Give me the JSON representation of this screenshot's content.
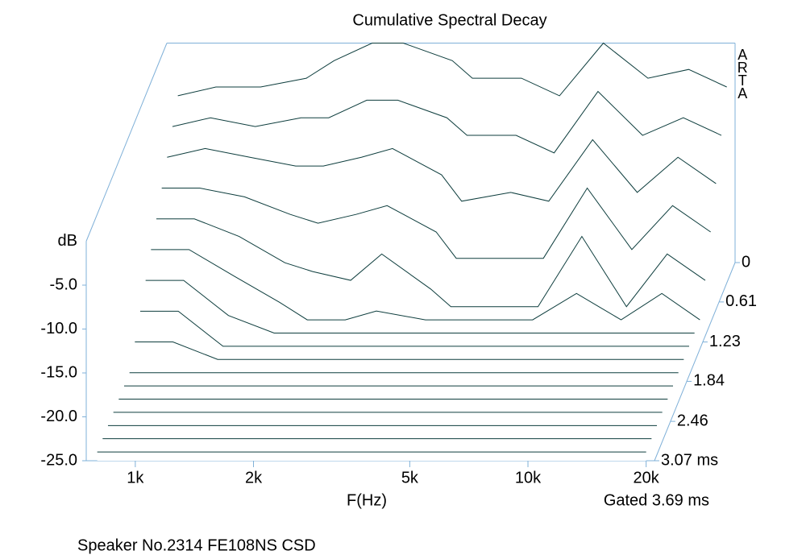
{
  "chart_data": {
    "type": "waterfall",
    "title": "Cumulative Spectral Decay",
    "x_label": "F(Hz)",
    "y_label": "dB",
    "note": "Gated 3.69 ms",
    "watermark": "ARTA",
    "caption": "Speaker No.2314 FE108NS CSD",
    "log_x": true,
    "color": "#0d3d3d",
    "frame_color": "#7fb0d8",
    "x": [
      800,
      1000,
      1300,
      1700,
      2000,
      2500,
      3000,
      4000,
      4500,
      6000,
      7500,
      9700,
      12600,
      16000,
      20000
    ],
    "z": [
      0,
      0.205,
      0.409,
      0.614,
      0.819,
      1.023,
      1.228,
      1.433,
      1.637,
      1.842,
      2.047,
      2.251,
      2.456,
      2.661,
      2.865,
      3.07
    ],
    "values": [
      [
        -6,
        -5,
        -5,
        -4,
        -2,
        0,
        0,
        -2,
        -4,
        -4,
        -6,
        0,
        -4,
        -3,
        -5
      ],
      [
        -8,
        -7,
        -8,
        -7,
        -7,
        -5,
        -5,
        -7,
        -9,
        -9,
        -11,
        -4,
        -9,
        -7,
        -9
      ],
      [
        -10,
        -9,
        -10,
        -11,
        -11,
        -10,
        -9,
        -12,
        -15,
        -14,
        -15,
        -8,
        -14,
        -10,
        -13
      ],
      [
        -12,
        -12,
        -13,
        -15,
        -16,
        -15,
        -14,
        -17,
        -20,
        -20,
        -20,
        -12,
        -19,
        -14,
        -17
      ],
      [
        -14,
        -14,
        -16,
        -19,
        -20,
        -21,
        -18,
        -22,
        -24,
        -24,
        -24,
        -16,
        -24,
        -18,
        -21
      ],
      [
        -16,
        -16,
        -19,
        -22,
        -24,
        -24,
        -23,
        -24,
        -24,
        -24,
        -24,
        -21,
        -24,
        -21,
        -24
      ],
      [
        -18,
        -18,
        -22,
        -24,
        -24,
        -24,
        -24,
        -24,
        -24,
        -24,
        -24,
        -24,
        -24,
        -24,
        -24
      ],
      [
        -20,
        -20,
        -24,
        -24,
        -24,
        -24,
        -24,
        -24,
        -24,
        -24,
        -24,
        -24,
        -24,
        -24,
        -24
      ],
      [
        -22,
        -22,
        -24,
        -24,
        -24,
        -24,
        -24,
        -24,
        -24,
        -24,
        -24,
        -24,
        -24,
        -24,
        -24
      ],
      [
        -24,
        -24,
        -24,
        -24,
        -24,
        -24,
        -24,
        -24,
        -24,
        -24,
        -24,
        -24,
        -24,
        -24,
        -24
      ],
      [
        -24,
        -24,
        -24,
        -24,
        -24,
        -24,
        -24,
        -24,
        -24,
        -24,
        -24,
        -24,
        -24,
        -24,
        -24
      ],
      [
        -24,
        -24,
        -24,
        -24,
        -24,
        -24,
        -24,
        -24,
        -24,
        -24,
        -24,
        -24,
        -24,
        -24,
        -24
      ],
      [
        -24,
        -24,
        -24,
        -24,
        -24,
        -24,
        -24,
        -24,
        -24,
        -24,
        -24,
        -24,
        -24,
        -24,
        -24
      ],
      [
        -24,
        -24,
        -24,
        -24,
        -24,
        -24,
        -24,
        -24,
        -24,
        -24,
        -24,
        -24,
        -24,
        -24,
        -24
      ],
      [
        -24,
        -24,
        -24,
        -24,
        -24,
        -24,
        -24,
        -24,
        -24,
        -24,
        -24,
        -24,
        -24,
        -24,
        -24
      ],
      [
        -24,
        -24,
        -24,
        -24,
        -24,
        -24,
        -24,
        -24,
        -24,
        -24,
        -24,
        -24,
        -24,
        -24,
        -24
      ]
    ],
    "xlim": [
      750,
      21000
    ],
    "xticks": [
      {
        "value": 1000,
        "label": "1k"
      },
      {
        "value": 2000,
        "label": "2k"
      },
      {
        "value": 5000,
        "label": "5k"
      },
      {
        "value": 10000,
        "label": "10k"
      },
      {
        "value": 20000,
        "label": "20k"
      }
    ],
    "ylim": [
      -25,
      0
    ],
    "yticks": [
      {
        "value": -25,
        "label": "-25.0"
      },
      {
        "value": -20,
        "label": "-20.0"
      },
      {
        "value": -15,
        "label": "-15.0"
      },
      {
        "value": -10,
        "label": "-10.0"
      },
      {
        "value": -5,
        "label": "-5.0"
      }
    ],
    "zlim": [
      0,
      3.07
    ],
    "zticks": [
      0,
      0.61,
      1.23,
      1.84,
      2.46,
      {
        "value": 3.07,
        "label": "3.07 ms"
      }
    ]
  }
}
